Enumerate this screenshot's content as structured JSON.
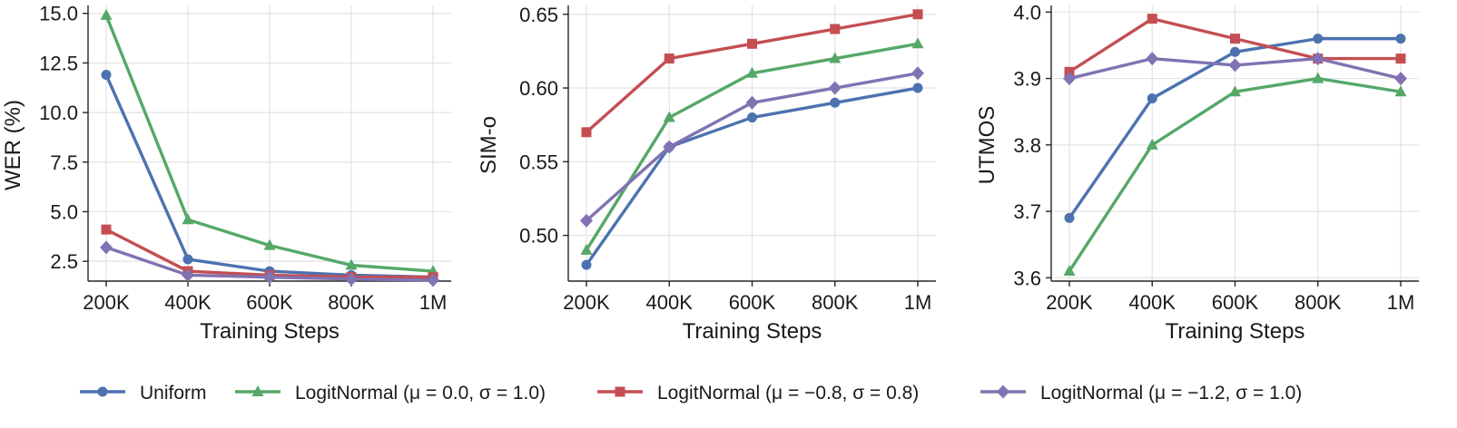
{
  "legend": {
    "position": "bottom",
    "entries": [
      {
        "label": "Uniform",
        "color": "#4C72B0",
        "marker": "circle"
      },
      {
        "label": "LogitNormal (μ = 0.0, σ = 1.0)",
        "color": "#55A868",
        "marker": "triangle"
      },
      {
        "label": "LogitNormal (μ = −0.8, σ = 0.8)",
        "color": "#C44E52",
        "marker": "square"
      },
      {
        "label": "LogitNormal (μ = −1.2, σ = 1.0)",
        "color": "#8172B2",
        "marker": "diamond"
      }
    ]
  },
  "chart_data": [
    {
      "type": "line",
      "title": "",
      "xlabel": "Training Steps",
      "ylabel": "WER (%)",
      "categories": [
        "200K",
        "400K",
        "600K",
        "800K",
        "1M"
      ],
      "ylim": [
        1.5,
        15.4
      ],
      "yticks": [
        "2.5",
        "5.0",
        "7.5",
        "10.0",
        "12.5",
        "15.0"
      ],
      "ytick_values": [
        2.5,
        5.0,
        7.5,
        10.0,
        12.5,
        15.0
      ],
      "grid": true,
      "series": [
        {
          "name": "Uniform",
          "values": [
            11.9,
            2.6,
            2.0,
            1.8,
            1.7
          ]
        },
        {
          "name": "LogitNormal (μ = 0.0, σ = 1.0)",
          "values": [
            14.9,
            4.6,
            3.3,
            2.3,
            2.0
          ]
        },
        {
          "name": "LogitNormal (μ = −0.8, σ = 0.8)",
          "values": [
            4.1,
            2.0,
            1.8,
            1.7,
            1.7
          ]
        },
        {
          "name": "LogitNormal (μ = −1.2, σ = 1.0)",
          "values": [
            3.2,
            1.8,
            1.7,
            1.6,
            1.55
          ]
        }
      ]
    },
    {
      "type": "line",
      "title": "",
      "xlabel": "Training Steps",
      "ylabel": "SIM-o",
      "categories": [
        "200K",
        "400K",
        "600K",
        "800K",
        "1M"
      ],
      "ylim": [
        0.469,
        0.656
      ],
      "yticks": [
        "0.50",
        "0.55",
        "0.60",
        "0.65"
      ],
      "ytick_values": [
        0.5,
        0.55,
        0.6,
        0.65
      ],
      "grid": true,
      "series": [
        {
          "name": "Uniform",
          "values": [
            0.48,
            0.56,
            0.58,
            0.59,
            0.6
          ]
        },
        {
          "name": "LogitNormal (μ = 0.0, σ = 1.0)",
          "values": [
            0.49,
            0.58,
            0.61,
            0.62,
            0.63
          ]
        },
        {
          "name": "LogitNormal (μ = −0.8, σ = 0.8)",
          "values": [
            0.57,
            0.62,
            0.63,
            0.64,
            0.65
          ]
        },
        {
          "name": "LogitNormal (μ = −1.2, σ = 1.0)",
          "values": [
            0.51,
            0.56,
            0.59,
            0.6,
            0.61
          ]
        }
      ]
    },
    {
      "type": "line",
      "title": "",
      "xlabel": "Training Steps",
      "ylabel": "UTMOS",
      "categories": [
        "200K",
        "400K",
        "600K",
        "800K",
        "1M"
      ],
      "ylim": [
        3.595,
        4.01
      ],
      "yticks": [
        "3.6",
        "3.7",
        "3.8",
        "3.9",
        "4.0"
      ],
      "ytick_values": [
        3.6,
        3.7,
        3.8,
        3.9,
        4.0
      ],
      "grid": true,
      "series": [
        {
          "name": "Uniform",
          "values": [
            3.69,
            3.87,
            3.94,
            3.96,
            3.96
          ]
        },
        {
          "name": "LogitNormal (μ = 0.0, σ = 1.0)",
          "values": [
            3.61,
            3.8,
            3.88,
            3.9,
            3.88
          ]
        },
        {
          "name": "LogitNormal (μ = −0.8, σ = 0.8)",
          "values": [
            3.91,
            3.99,
            3.96,
            3.93,
            3.93
          ]
        },
        {
          "name": "LogitNormal (μ = −1.2, σ = 1.0)",
          "values": [
            3.9,
            3.93,
            3.92,
            3.93,
            3.9
          ]
        }
      ]
    }
  ]
}
